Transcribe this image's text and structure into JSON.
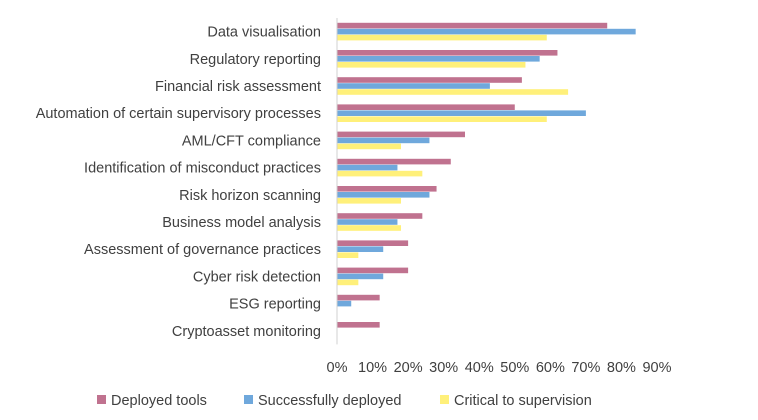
{
  "chart_data": {
    "type": "bar",
    "orientation": "horizontal",
    "categories": [
      "Data visualisation",
      "Regulatory reporting",
      "Financial risk assessment",
      "Automation of certain supervisory processes",
      "AML/CFT compliance",
      "Identification of misconduct practices",
      "Risk horizon scanning",
      "Business model analysis",
      "Assessment of governance practices",
      "Cyber risk detection",
      "ESG reporting",
      "Cryptoasset monitoring"
    ],
    "series": [
      {
        "name": "Deployed tools",
        "color": "#c0728f",
        "values": [
          76,
          62,
          52,
          50,
          36,
          32,
          28,
          24,
          20,
          20,
          12,
          12
        ]
      },
      {
        "name": "Successfully deployed",
        "color": "#6fa8dc",
        "values": [
          84,
          57,
          43,
          70,
          26,
          17,
          26,
          17,
          13,
          13,
          4,
          null
        ]
      },
      {
        "name": "Critical to supervision",
        "color": "#fff07a",
        "values": [
          59,
          53,
          65,
          59,
          18,
          24,
          18,
          18,
          6,
          6,
          null,
          null
        ]
      }
    ],
    "xlim": [
      0,
      90
    ],
    "xticks": [
      "0%",
      "10%",
      "20%",
      "30%",
      "40%",
      "50%",
      "60%",
      "70%",
      "80%",
      "90%"
    ],
    "title": "",
    "xlabel": "",
    "ylabel": "",
    "grid": false,
    "legend_position": "bottom"
  }
}
